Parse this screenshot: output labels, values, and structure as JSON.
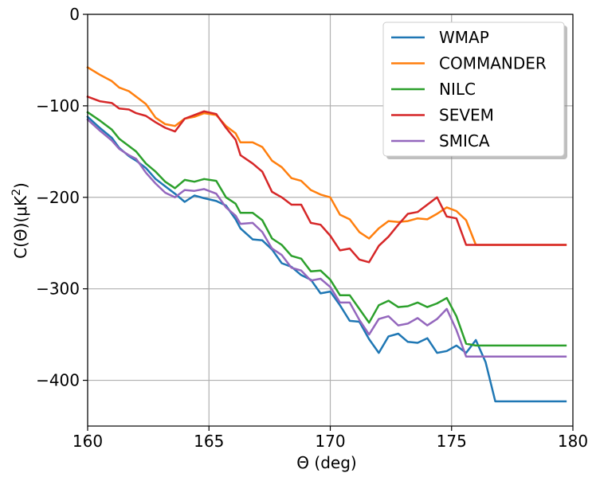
{
  "chart_data": {
    "type": "line",
    "title": "",
    "xlabel": "Θ (deg)",
    "ylabel": "C(Θ)(μK²)",
    "ylabel_parts": {
      "main": "C(Θ)(μK",
      "sup": "2",
      "tail": ")"
    },
    "xlim": [
      160,
      180
    ],
    "ylim": [
      -450,
      0
    ],
    "xticks": [
      160,
      165,
      170,
      175,
      180
    ],
    "yticks": [
      0,
      -100,
      -200,
      -300,
      -400
    ],
    "xtick_labels": [
      "160",
      "165",
      "170",
      "175",
      "180"
    ],
    "ytick_labels": [
      "0",
      "−100",
      "−200",
      "−300",
      "−400"
    ],
    "grid": true,
    "legend_position": "top-right",
    "x": [
      160.0,
      160.5,
      161.0,
      161.3,
      161.7,
      162.0,
      162.4,
      162.8,
      163.2,
      163.6,
      164.0,
      164.4,
      164.8,
      165.3,
      165.7,
      166.1,
      166.3,
      166.8,
      167.2,
      167.6,
      168.0,
      168.4,
      168.8,
      169.2,
      169.6,
      170.0,
      170.4,
      170.8,
      171.2,
      171.6,
      172.0,
      172.4,
      172.8,
      173.2,
      173.6,
      174.0,
      174.4,
      174.8,
      175.2,
      175.6,
      176.0,
      176.4,
      176.8,
      177.2,
      177.6,
      178.0,
      178.4,
      178.7,
      179.0,
      179.4,
      179.7
    ],
    "series": [
      {
        "name": "WMAP",
        "color": "#1f77b4",
        "values": [
          -112,
          -124,
          -135,
          -146,
          -155,
          -160,
          -168,
          -180,
          -188,
          -196,
          -205,
          -198,
          -201,
          -204,
          -209,
          -224,
          -234,
          -246,
          -247,
          -257,
          -272,
          -276,
          -285,
          -290,
          -305,
          -303,
          -318,
          -335,
          -336,
          -355,
          -370,
          -352,
          -349,
          -358,
          -359,
          -354,
          -370,
          -368,
          -362,
          -370,
          -356,
          -380,
          -423,
          -423,
          -423,
          -423,
          -423,
          -423,
          -423,
          -423,
          -423
        ]
      },
      {
        "name": "COMMANDER",
        "color": "#ff7f0e",
        "values": [
          -58,
          -66,
          -73,
          -80,
          -84,
          -90,
          -98,
          -113,
          -120,
          -122,
          -114,
          -112,
          -108,
          -110,
          -122,
          -130,
          -140,
          -140,
          -145,
          -160,
          -167,
          -179,
          -182,
          -192,
          -197,
          -200,
          -219,
          -224,
          -238,
          -245,
          -234,
          -226,
          -227,
          -226,
          -223,
          -224,
          -218,
          -211,
          -215,
          -225,
          -252,
          -252,
          -252,
          -252,
          -252,
          -252,
          -252,
          -252,
          -252,
          -252,
          -252
        ]
      },
      {
        "name": "NILC",
        "color": "#2ca02c",
        "values": [
          -107,
          -116,
          -126,
          -136,
          -144,
          -150,
          -163,
          -172,
          -183,
          -190,
          -181,
          -183,
          -180,
          -182,
          -200,
          -207,
          -217,
          -217,
          -225,
          -245,
          -252,
          -264,
          -267,
          -281,
          -280,
          -290,
          -307,
          -307,
          -322,
          -337,
          -318,
          -313,
          -320,
          -319,
          -315,
          -320,
          -316,
          -310,
          -330,
          -360,
          -362,
          -362,
          -362,
          -362,
          -362,
          -362,
          -362,
          -362,
          -362,
          -362,
          -362
        ]
      },
      {
        "name": "SEVEM",
        "color": "#d62728",
        "values": [
          -90,
          -95,
          -97,
          -103,
          -104,
          -108,
          -111,
          -118,
          -124,
          -128,
          -114,
          -110,
          -106,
          -109,
          -124,
          -137,
          -154,
          -163,
          -172,
          -194,
          -200,
          -208,
          -208,
          -228,
          -230,
          -242,
          -258,
          -256,
          -268,
          -271,
          -253,
          -243,
          -230,
          -218,
          -216,
          -208,
          -200,
          -221,
          -223,
          -252,
          -252,
          -252,
          -252,
          -252,
          -252,
          -252,
          -252,
          -252,
          -252,
          -252,
          -252
        ]
      },
      {
        "name": "SMICA",
        "color": "#9467bd",
        "values": [
          -115,
          -127,
          -138,
          -147,
          -154,
          -158,
          -173,
          -185,
          -195,
          -200,
          -192,
          -193,
          -191,
          -196,
          -211,
          -220,
          -229,
          -228,
          -238,
          -256,
          -263,
          -277,
          -280,
          -291,
          -289,
          -298,
          -315,
          -315,
          -334,
          -350,
          -333,
          -330,
          -340,
          -338,
          -332,
          -340,
          -333,
          -322,
          -345,
          -374,
          -374,
          -374,
          -374,
          -374,
          -374,
          -374,
          -374,
          -374,
          -374,
          -374,
          -374
        ]
      }
    ]
  }
}
